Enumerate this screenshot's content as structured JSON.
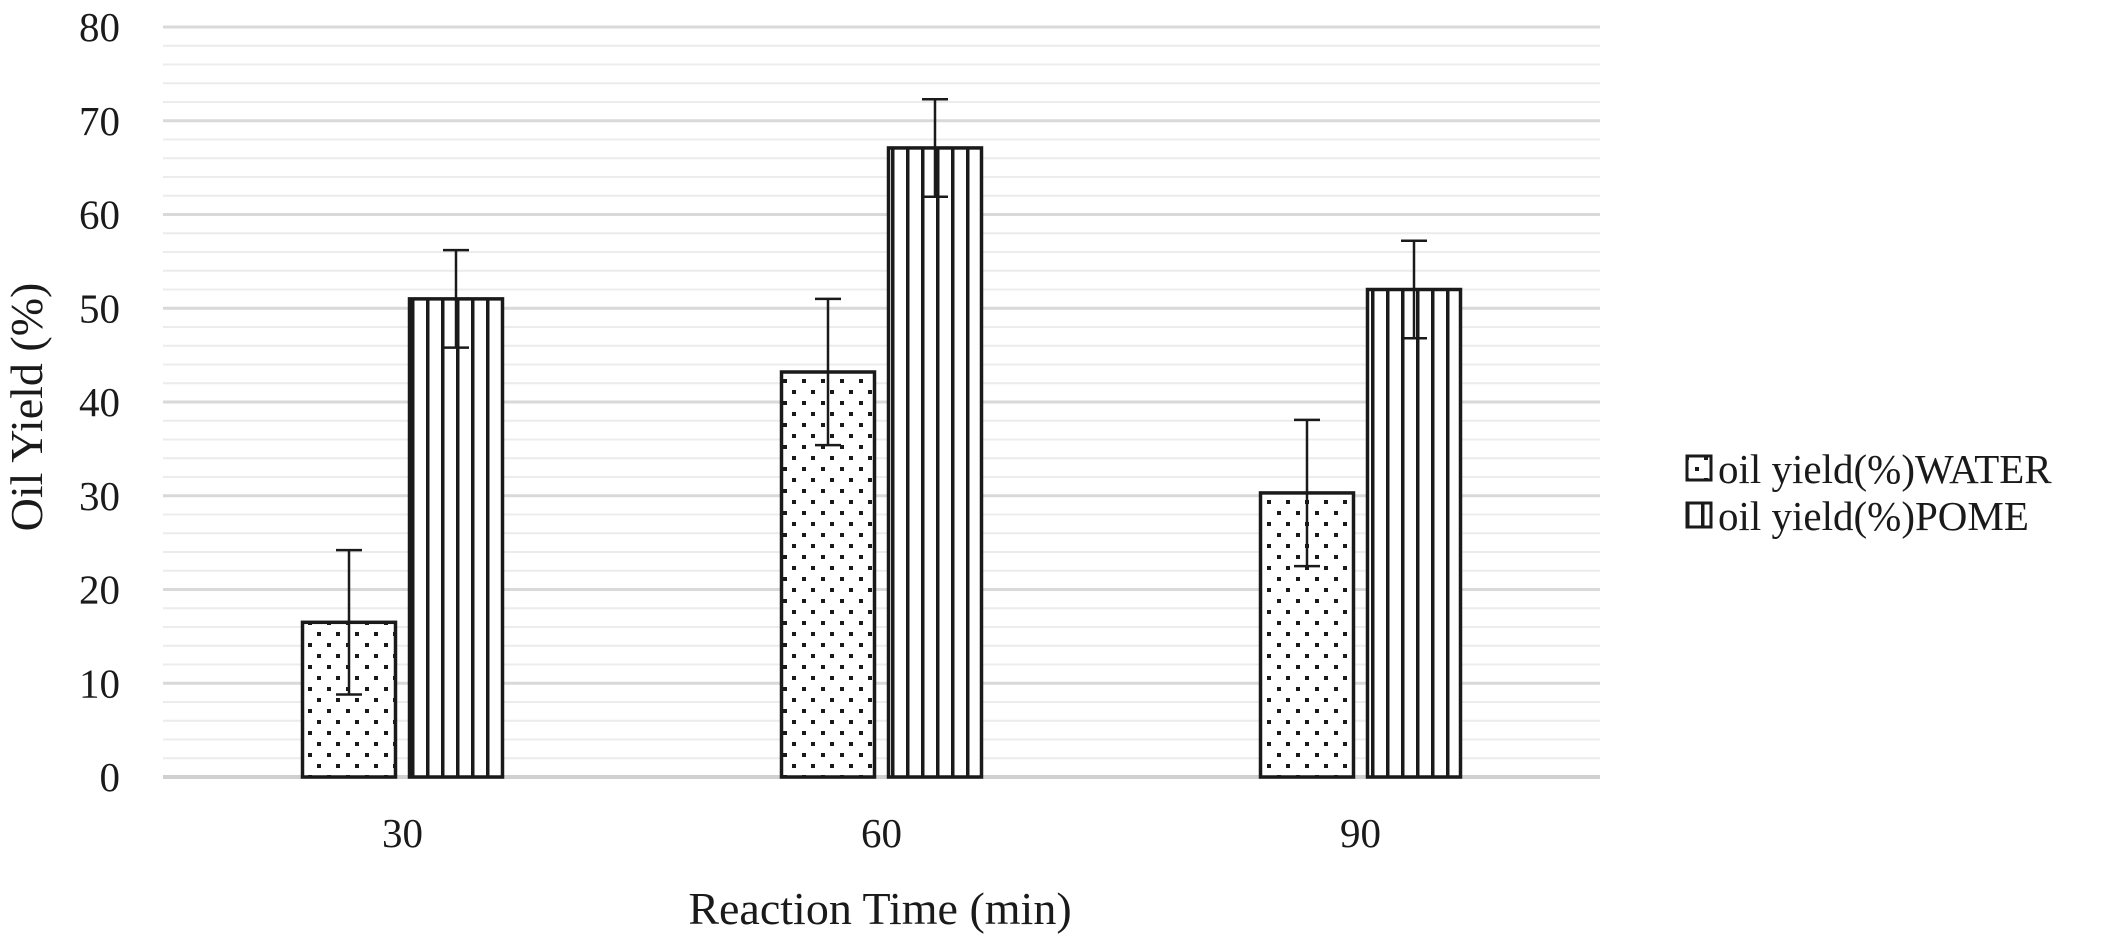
{
  "chart_data": {
    "type": "bar",
    "title": "",
    "xlabel": "Reaction Time (min)",
    "ylabel": "Oil Yield (%)",
    "categories": [
      "30",
      "60",
      "90"
    ],
    "ylim": [
      0,
      80
    ],
    "yticks": [
      0,
      10,
      20,
      30,
      40,
      50,
      60,
      70,
      80
    ],
    "minor_grid_step": 2,
    "grid": true,
    "legend_position": "right",
    "series": [
      {
        "name": "oil yield(%)WATER",
        "pattern": "dots",
        "values": [
          16.5,
          43.2,
          30.3
        ],
        "error": [
          7.7,
          7.8,
          7.8
        ]
      },
      {
        "name": "oil yield(%)POME",
        "pattern": "vertical-lines",
        "values": [
          51,
          67.1,
          52
        ],
        "error": [
          5.2,
          5.2,
          5.2
        ]
      }
    ],
    "colors": {
      "bar_stroke": "#1a1a1a",
      "bar_fill": "#ffffff",
      "major_grid": "#d9d9d9",
      "minor_grid": "#ececec",
      "axis": "#d0d0d0"
    }
  }
}
